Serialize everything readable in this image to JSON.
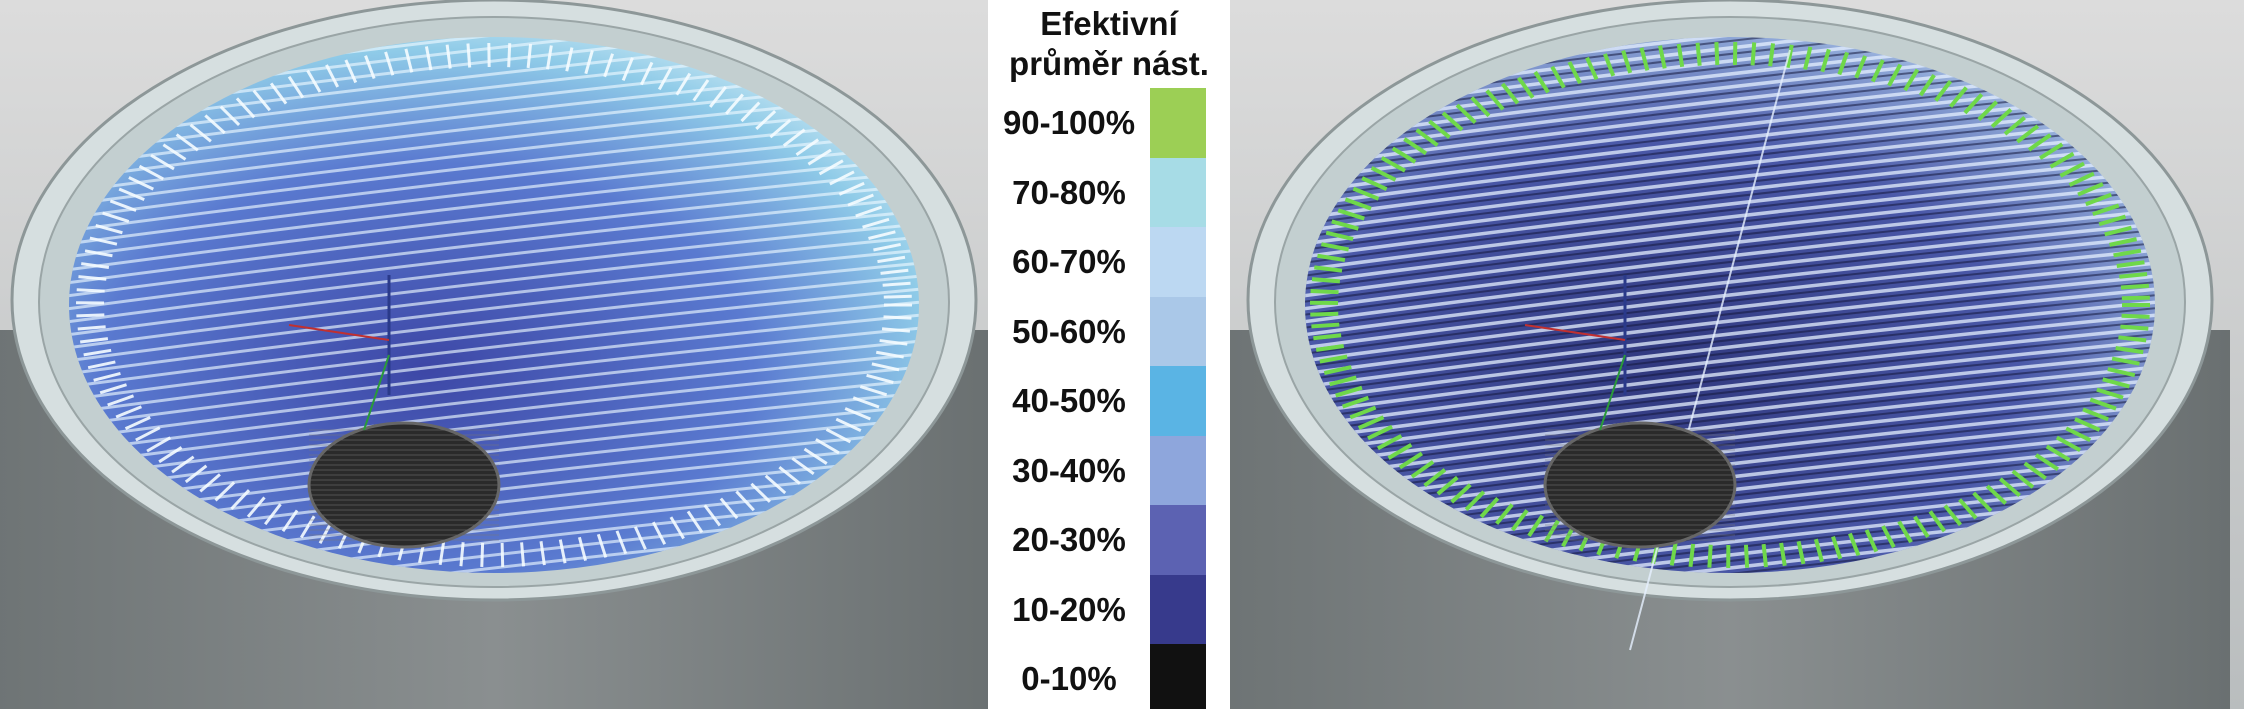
{
  "legend": {
    "title_line1": "Efektivní",
    "title_line2": "průměr nást.",
    "items": [
      {
        "label": "90-100%",
        "color": "#9ccf55"
      },
      {
        "label": "70-80%",
        "color": "#a7dce6"
      },
      {
        "label": "60-70%",
        "color": "#bcd8f2"
      },
      {
        "label": "50-60%",
        "color": "#aac8e8"
      },
      {
        "label": "40-50%",
        "color": "#5ab4e4"
      },
      {
        "label": "30-40%",
        "color": "#8ea6dc"
      },
      {
        "label": "20-30%",
        "color": "#5c62b2"
      },
      {
        "label": "10-20%",
        "color": "#373a8c"
      },
      {
        "label": "0-10%",
        "color": "#111111"
      }
    ]
  },
  "colors": {
    "background_top": "#dcdcdc",
    "background_bottom": "#8a8f90",
    "rim": "#c3cfd0",
    "bowl_deep": "#3d47a6",
    "bowl_light": "#8fcbe8",
    "toolpath_green": "#6fd84a",
    "bottom_hole": "#2a2a2a"
  }
}
